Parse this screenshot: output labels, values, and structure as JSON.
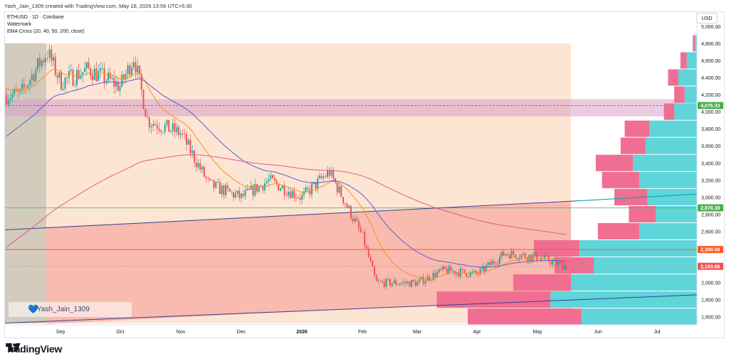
{
  "header": {
    "caption": "Yash_Jain_1309 created with TradingView.com, May 16, 2026 13:56 UTC+5:30"
  },
  "legend": {
    "symbol_line": "ETHUSD · 1D · Coinbase",
    "watermark_line": "Watermark",
    "indicator_line": "EMA Cross (20, 40, 50, 200, close)"
  },
  "currency_button": "USD",
  "watermark_text": "Yash_Jain_1309",
  "footer": {
    "brand": "TradingView"
  },
  "colors": {
    "up": "#26a69a",
    "down": "#ef5350",
    "ema20": "#f7931a",
    "ema40": "#5c5cd6",
    "ema200": "#e05b8a",
    "trend_line": "#3a3f8f",
    "resistance": "#ff5722",
    "teal_line": "#12a3b0",
    "green_hline": "#4caf50",
    "zone_peach": "#fde1cc",
    "zone_red": "#f7a8a0",
    "zone_pink": "#e7a3b8",
    "profile_teal": "#5fd5da",
    "profile_pink": "#f06e92"
  },
  "chart_data": {
    "type": "candlestick",
    "symbol": "ETHUSD",
    "interval": "1D",
    "exchange": "Coinbase",
    "x_ticks": [
      "Sep",
      "Oct",
      "Nov",
      "Dec",
      "2026",
      "Feb",
      "Mar",
      "Apr",
      "May",
      "Jun",
      "Jul"
    ],
    "y_ticks": [
      1600,
      1800,
      2000,
      2200,
      2400,
      2600,
      2800,
      3000,
      3200,
      3400,
      3600,
      3800,
      4000,
      4200,
      4400,
      4600,
      4800,
      5000
    ],
    "y_range": [
      1460,
      5120
    ],
    "price_labels": [
      {
        "text": "4,076.33",
        "value": 4076.33,
        "color": "#4caf50"
      },
      {
        "text": "2,878.38",
        "value": 2878.38,
        "color": "#4caf50"
      },
      {
        "text": "2,390.09",
        "value": 2390.09,
        "color": "#ff5722"
      },
      {
        "text": "2,193.68",
        "value": 2193.68,
        "color": "#ef5350"
      }
    ],
    "close_path_monthly": [
      [
        "Aug 10",
        4200
      ],
      [
        "Aug 20",
        4550
      ],
      [
        "Aug 25",
        4700
      ],
      [
        "Sep 1",
        4350
      ],
      [
        "Sep 15",
        4500
      ],
      [
        "Oct 1",
        4300
      ],
      [
        "Oct 8",
        4650
      ],
      [
        "Oct 15",
        3900
      ],
      [
        "Nov 1",
        3750
      ],
      [
        "Nov 15",
        3150
      ],
      [
        "Dec 1",
        3000
      ],
      [
        "Dec 15",
        3200
      ],
      [
        "Jan 1",
        3000
      ],
      [
        "Jan 15",
        3300
      ],
      [
        "Feb 1",
        2550
      ],
      [
        "Feb 8",
        2000
      ],
      [
        "Mar 1",
        2000
      ],
      [
        "Mar 15",
        2150
      ],
      [
        "Apr 1",
        2100
      ],
      [
        "Apr 15",
        2350
      ],
      [
        "May 1",
        2300
      ],
      [
        "May 16",
        2193.68
      ]
    ],
    "volume_profile_rows": [
      {
        "price": 1600,
        "teal": 0.56,
        "pink": 0.55
      },
      {
        "price": 1800,
        "teal": 0.71,
        "pink": 0.55
      },
      {
        "price": 2000,
        "teal": 0.61,
        "pink": 0.28
      },
      {
        "price": 2200,
        "teal": 0.5,
        "pink": 0.19
      },
      {
        "price": 2400,
        "teal": 0.57,
        "pink": 0.22
      },
      {
        "price": 2600,
        "teal": 0.28,
        "pink": 0.2
      },
      {
        "price": 2800,
        "teal": 0.2,
        "pink": 0.13
      },
      {
        "price": 3000,
        "teal": 0.24,
        "pink": 0.16
      },
      {
        "price": 3200,
        "teal": 0.28,
        "pink": 0.18
      },
      {
        "price": 3400,
        "teal": 0.31,
        "pink": 0.18
      },
      {
        "price": 3600,
        "teal": 0.25,
        "pink": 0.12
      },
      {
        "price": 3800,
        "teal": 0.23,
        "pink": 0.12
      },
      {
        "price": 4000,
        "teal": 0.11,
        "pink": 0.05
      },
      {
        "price": 4200,
        "teal": 0.06,
        "pink": 0.05
      },
      {
        "price": 4400,
        "teal": 0.09,
        "pink": 0.05
      },
      {
        "price": 4600,
        "teal": 0.05,
        "pink": 0.03
      },
      {
        "price": 4800,
        "teal": 0.01,
        "pink": 0.01
      }
    ]
  }
}
